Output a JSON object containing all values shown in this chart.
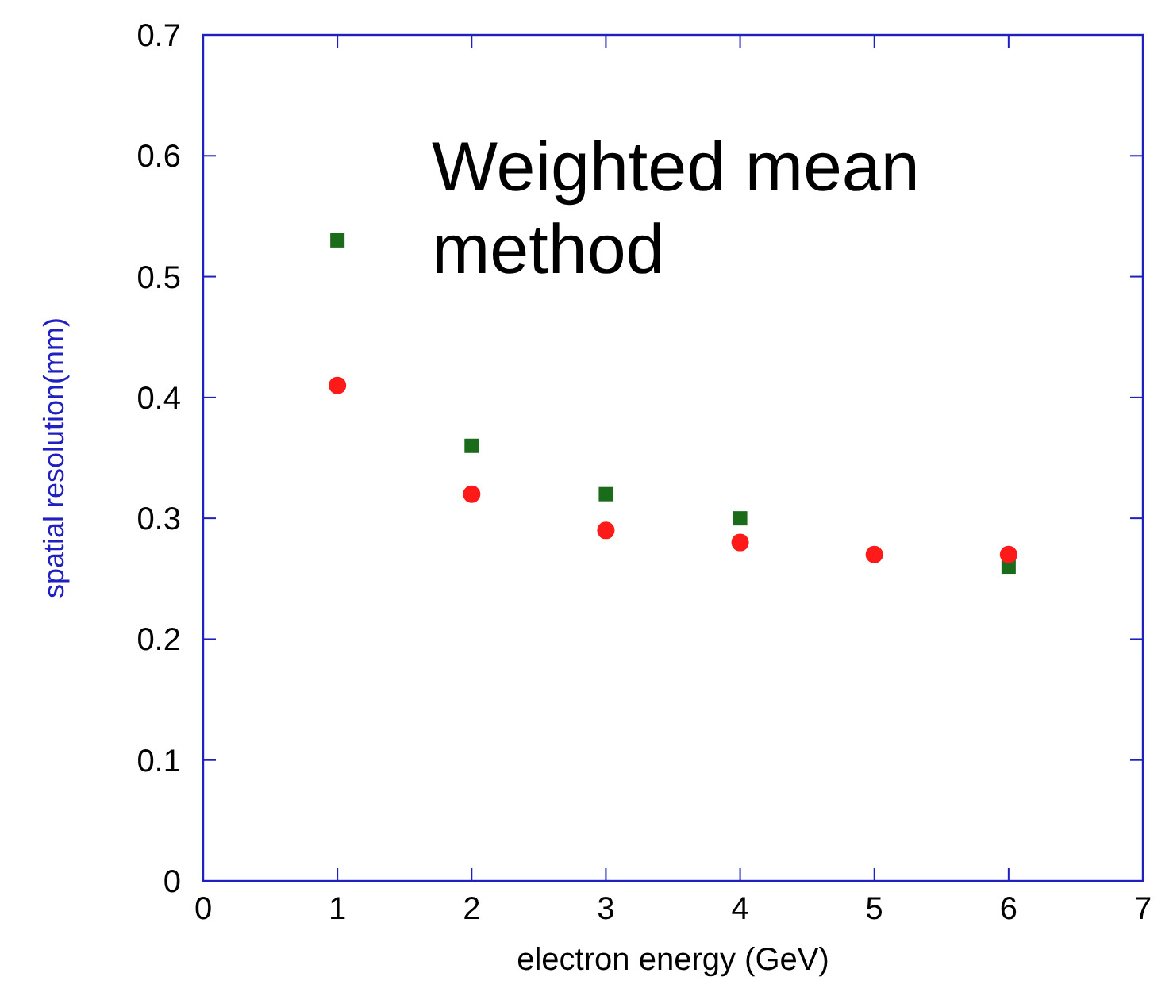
{
  "chart_data": {
    "type": "scatter",
    "xlabel": "electron  energy  (GeV)",
    "ylabel": "spatial resolution(mm)",
    "annotations": [
      "Weighted mean method"
    ],
    "xlim": [
      0,
      7
    ],
    "xticks": [
      0,
      1,
      2,
      3,
      4,
      5,
      6,
      7
    ],
    "ylim": [
      0,
      0.7
    ],
    "yticks": [
      0,
      0.1,
      0.2,
      0.3,
      0.4,
      0.5,
      0.6,
      0.7
    ],
    "grid": false,
    "series": [
      {
        "color": "#1a6b1a",
        "marker": "square",
        "x": [
          1,
          2,
          3,
          4,
          6
        ],
        "values": [
          0.53,
          0.36,
          0.32,
          0.3,
          0.26
        ]
      },
      {
        "color": "#ff1a1a",
        "marker": "circle",
        "x": [
          1,
          2,
          3,
          4,
          5,
          6
        ],
        "values": [
          0.41,
          0.32,
          0.29,
          0.28,
          0.27,
          0.27
        ]
      }
    ]
  }
}
